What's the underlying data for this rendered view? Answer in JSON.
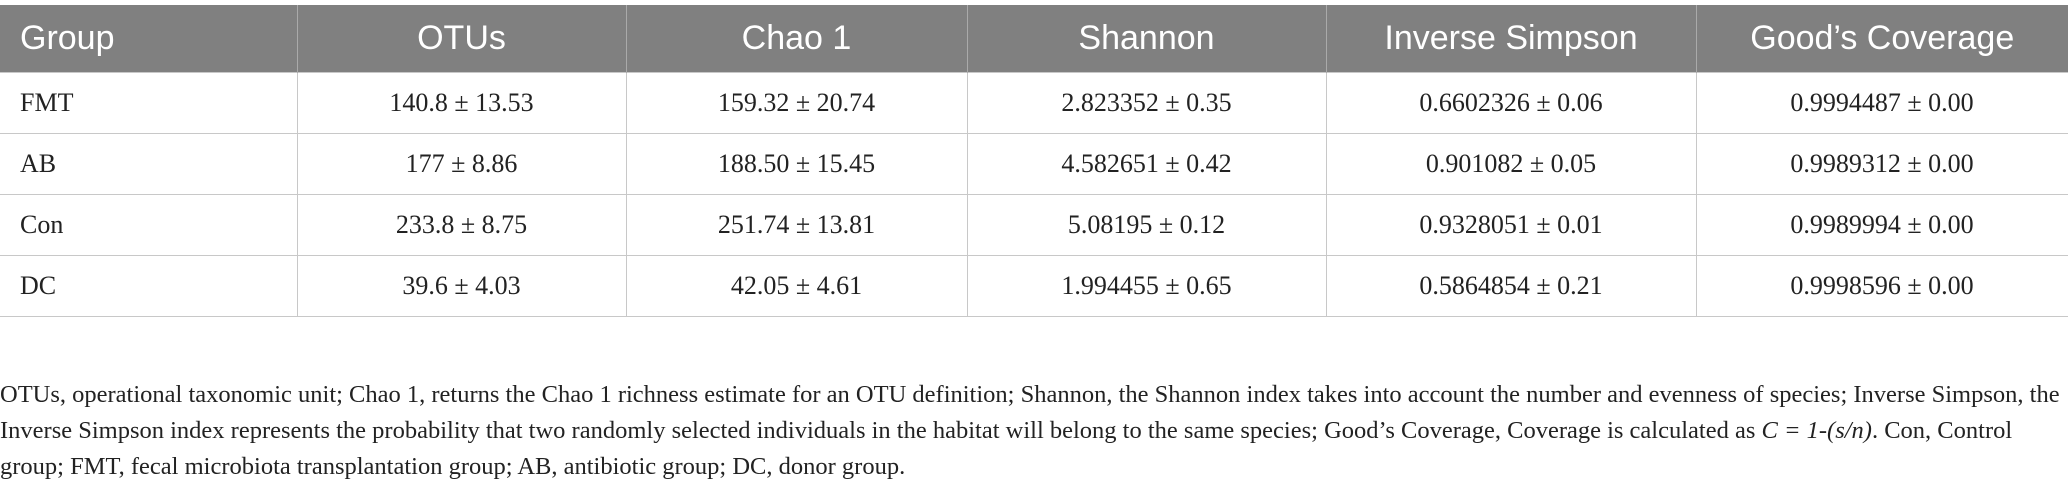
{
  "table": {
    "header": [
      "Group",
      "OTUs",
      "Chao 1",
      "Shannon",
      "Inverse Simpson",
      "Good’s Coverage"
    ],
    "rows": [
      [
        "FMT",
        "140.8 ± 13.53",
        "159.32 ± 20.74",
        "2.823352 ± 0.35",
        "0.6602326 ± 0.06",
        "0.9994487 ± 0.00"
      ],
      [
        "AB",
        "177 ± 8.86",
        "188.50 ± 15.45",
        "4.582651 ± 0.42",
        "0.901082 ± 0.05",
        "0.9989312 ± 0.00"
      ],
      [
        "Con",
        "233.8 ± 8.75",
        "251.74 ± 13.81",
        "5.08195 ± 0.12",
        "0.9328051 ± 0.01",
        "0.9989994 ± 0.00"
      ],
      [
        "DC",
        "39.6 ± 4.03",
        "42.05 ± 4.61",
        "1.994455 ± 0.65",
        "0.5864854 ± 0.21",
        "0.9998596 ± 0.00"
      ]
    ]
  },
  "footnote": {
    "before": "OTUs, operational taxonomic unit; Chao 1, returns the Chao 1 richness estimate for an OTU definition; Shannon, the Shannon index takes into account the number and evenness of species; Inverse Simpson, the Inverse Simpson index represents the probability that two randomly selected individuals in the habitat will belong to the same species; Good’s Coverage, Coverage is calculated as ",
    "formula": "C = 1-(s/n)",
    "after": ". Con, Control group; FMT, fecal microbiota transplantation group; AB, antibiotic group; DC, donor group."
  }
}
